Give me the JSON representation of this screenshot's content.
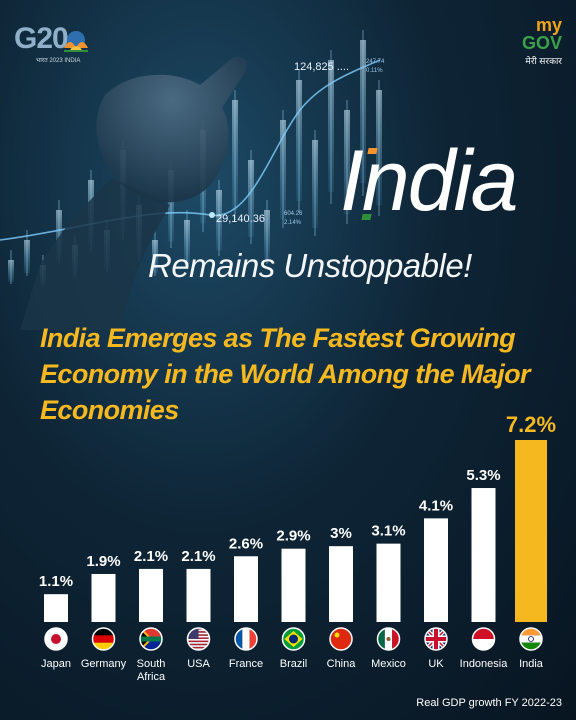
{
  "brand": {
    "g20_logo_text": "G20",
    "g20_logo_subtitle": "भारत 2023 INDIA",
    "mygov_my": "my",
    "mygov_gov": "GOV",
    "mygov_hindi": "मेरी सरकार"
  },
  "background_tickers": {
    "top_value": "124,825 ....",
    "top_change_a": "247.74",
    "top_change_b": "0.11%",
    "mid_value": "29,140.36",
    "mid_change_a": "604.26",
    "mid_change_b": "2.14%"
  },
  "headline": {
    "title": "India",
    "subtitle": "Remains Unstoppable!"
  },
  "statement": "India Emerges as The Fastest Growing Economy in the World Among the Major Economies",
  "footnote": "Real GDP growth FY 2022-23",
  "colors": {
    "bar_default": "#ffffff",
    "bar_highlight": "#f6b81f",
    "statement_text": "#f6b81f",
    "saffron": "#f4922b",
    "green": "#2f8f3a"
  },
  "chart_data": {
    "type": "bar",
    "categories": [
      "Japan",
      "Germany",
      "South Africa",
      "USA",
      "France",
      "Brazil",
      "China",
      "Mexico",
      "UK",
      "Indonesia",
      "India"
    ],
    "category_labels": [
      [
        "Japan"
      ],
      [
        "Germany"
      ],
      [
        "South",
        "Africa"
      ],
      [
        "USA"
      ],
      [
        "France"
      ],
      [
        "Brazil"
      ],
      [
        "China"
      ],
      [
        "Mexico"
      ],
      [
        "UK"
      ],
      [
        "Indonesia"
      ],
      [
        "India"
      ]
    ],
    "values": [
      1.1,
      1.9,
      2.1,
      2.1,
      2.6,
      2.9,
      3.0,
      3.1,
      4.1,
      5.3,
      7.2
    ],
    "value_labels": [
      "1.1%",
      "1.9%",
      "2.1%",
      "2.1%",
      "2.6%",
      "2.9%",
      "3%",
      "3.1%",
      "4.1%",
      "5.3%",
      "7.2%"
    ],
    "flag_icons": [
      "japan-flag-icon",
      "germany-flag-icon",
      "south-africa-flag-icon",
      "usa-flag-icon",
      "france-flag-icon",
      "brazil-flag-icon",
      "china-flag-icon",
      "mexico-flag-icon",
      "uk-flag-icon",
      "indonesia-flag-icon",
      "india-flag-icon"
    ],
    "highlight_category": "India",
    "ylim": [
      0,
      7.2
    ],
    "grid": false,
    "legend": "none"
  }
}
